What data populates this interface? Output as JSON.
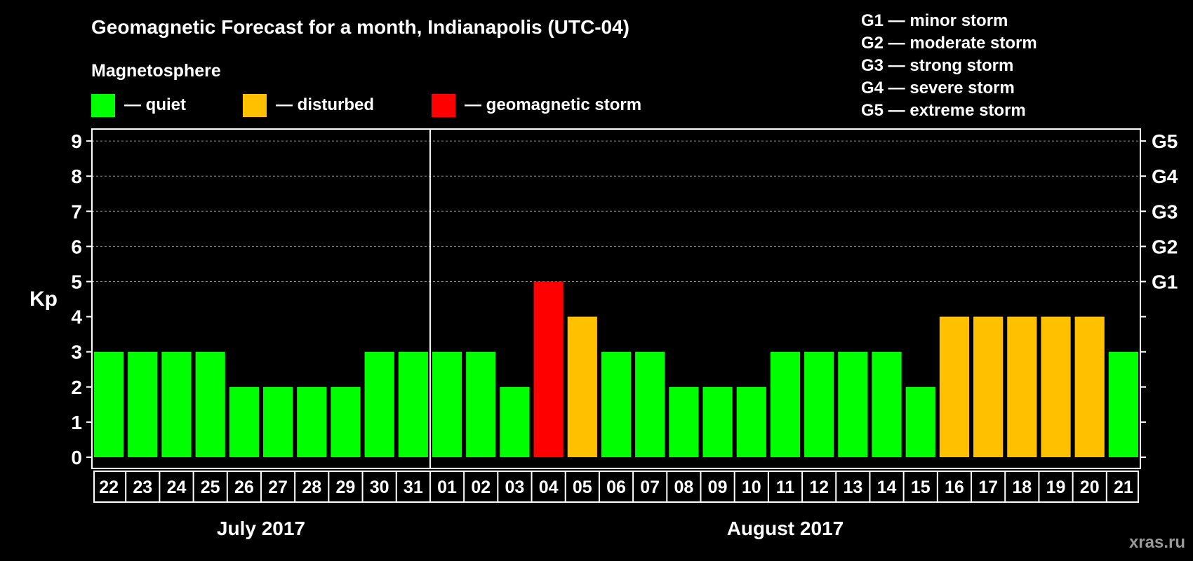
{
  "title": "Geomagnetic Forecast for a month, Indianapolis (UTC-04)",
  "subtitle": "Magnetosphere",
  "legend": [
    {
      "label": "— quiet",
      "color": "#00ff00"
    },
    {
      "label": "— disturbed",
      "color": "#ffc000"
    },
    {
      "label": "— geomagnetic storm",
      "color": "#ff0000"
    }
  ],
  "storm_scale": [
    "G1 — minor storm",
    "G2 — moderate storm",
    "G3 — strong storm",
    "G4 — severe storm",
    "G5 — extreme storm"
  ],
  "watermark": "xras.ru",
  "chart_data": {
    "type": "bar",
    "title": "Geomagnetic Forecast for a month, Indianapolis (UTC-04)",
    "ylabel": "Kp",
    "ylim": [
      0,
      9
    ],
    "yticks": [
      "0",
      "1",
      "2",
      "3",
      "4",
      "5",
      "6",
      "7",
      "8",
      "9"
    ],
    "right_ticks": [
      {
        "kp": 5,
        "label": "G1"
      },
      {
        "kp": 6,
        "label": "G2"
      },
      {
        "kp": 7,
        "label": "G3"
      },
      {
        "kp": 8,
        "label": "G4"
      },
      {
        "kp": 9,
        "label": "G5"
      }
    ],
    "gridlines": [
      5,
      6,
      7,
      8,
      9
    ],
    "categories": [
      "22",
      "23",
      "24",
      "25",
      "26",
      "27",
      "28",
      "29",
      "30",
      "31",
      "01",
      "02",
      "03",
      "04",
      "05",
      "06",
      "07",
      "08",
      "09",
      "10",
      "11",
      "12",
      "13",
      "14",
      "15",
      "16",
      "17",
      "18",
      "19",
      "20",
      "21"
    ],
    "values": [
      3,
      3,
      3,
      3,
      2,
      2,
      2,
      2,
      3,
      3,
      3,
      3,
      2,
      5,
      4,
      3,
      3,
      2,
      2,
      2,
      3,
      3,
      3,
      3,
      2,
      4,
      4,
      4,
      4,
      4,
      3
    ],
    "colors": {
      "quiet": "#00ff00",
      "disturbed": "#ffc000",
      "storm": "#ff0000"
    },
    "months": [
      {
        "label": "July 2017",
        "start": 0,
        "end": 9
      },
      {
        "label": "August 2017",
        "start": 10,
        "end": 30
      }
    ]
  }
}
